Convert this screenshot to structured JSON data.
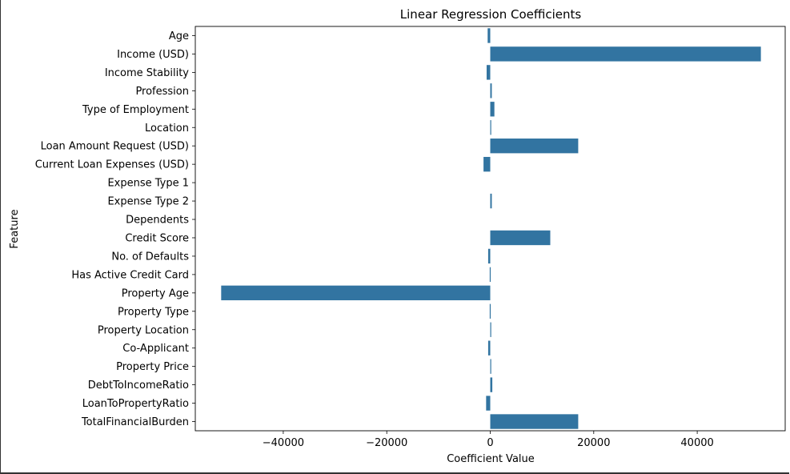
{
  "chart_data": {
    "type": "bar",
    "orientation": "horizontal",
    "title": "Linear Regression Coefficients",
    "xlabel": "Coefficient Value",
    "ylabel": "Feature",
    "xlim": [
      -57000,
      57000
    ],
    "xticks": [
      -40000,
      -20000,
      0,
      20000,
      40000
    ],
    "xtick_labels": [
      "−40000",
      "−20000",
      "0",
      "20000",
      "40000"
    ],
    "grid": false,
    "bar_color": "#3274a1",
    "categories": [
      "Age",
      "Income (USD)",
      "Income Stability",
      "Profession",
      "Type of Employment",
      "Location",
      "Loan Amount Request (USD)",
      "Current Loan Expenses (USD)",
      "Expense Type 1",
      "Expense Type 2",
      "Dependents",
      "Credit Score",
      "No. of Defaults",
      "Has Active Credit Card",
      "Property Age",
      "Property Type",
      "Property Location",
      "Co-Applicant",
      "Property Price",
      "DebtToIncomeRatio",
      "LoanToPropertyRatio",
      "TotalFinancialBurden"
    ],
    "values": [
      -500,
      52300,
      -700,
      300,
      800,
      150,
      17000,
      -1300,
      0,
      300,
      0,
      11600,
      -400,
      -100,
      -52000,
      -100,
      100,
      -400,
      100,
      400,
      -800,
      17000
    ]
  }
}
